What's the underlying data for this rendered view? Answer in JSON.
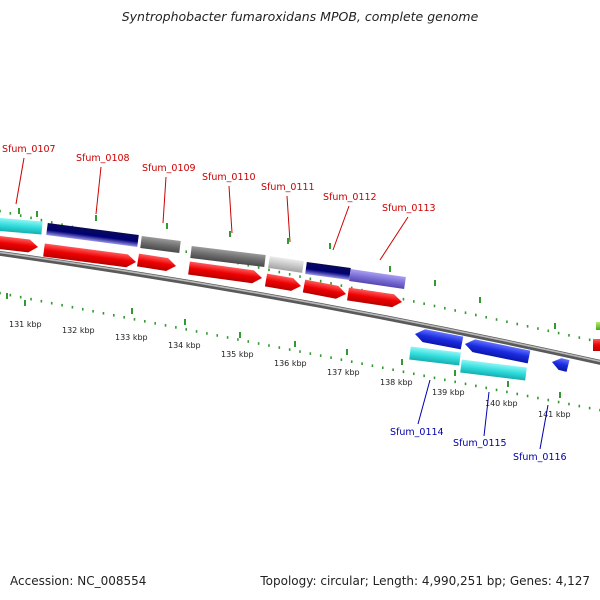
{
  "title": "Syntrophobacter fumaroxidans MPOB, complete genome",
  "accession": "Accession: NC_008554",
  "summary": "Topology: circular; Length: 4,990,251 bp; Genes: 4,127",
  "colors": {
    "backbone": "#8c8c8c",
    "tick_dots": "#339933",
    "forward_label": "#cc0000",
    "reverse_label": "#0000aa",
    "cds_red": "#ee0000",
    "cyan": "#33dddd",
    "navy": "#000077",
    "lavender": "#7b6fd6",
    "dark_gray": "#6e6e6e",
    "light_gray": "#c8c8c8",
    "blue": "#1a2be0",
    "green": "#44aa22"
  },
  "scale_labels": [
    "131 kbp",
    "132 kbp",
    "133 kbp",
    "134 kbp",
    "135 kbp",
    "136 kbp",
    "137 kbp",
    "138 kbp",
    "139 kbp",
    "140 kbp",
    "141 kbp"
  ],
  "forward_genes": [
    "Sfum_0107",
    "Sfum_0108",
    "Sfum_0109",
    "Sfum_0110",
    "Sfum_0111",
    "Sfum_0112",
    "Sfum_0113"
  ],
  "reverse_genes": [
    "Sfum_0114",
    "Sfum_0115",
    "Sfum_0116"
  ]
}
